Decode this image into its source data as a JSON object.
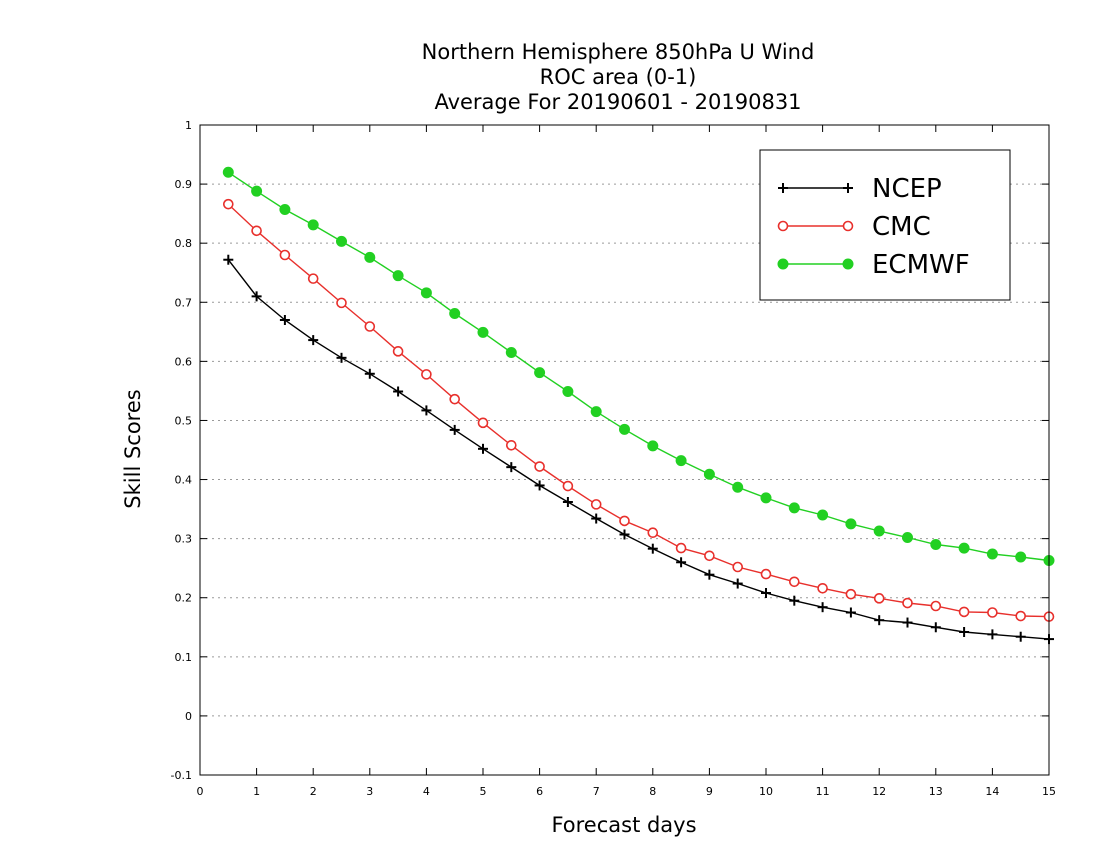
{
  "chart_data": {
    "type": "line",
    "title_lines": [
      "Northern Hemisphere 850hPa U Wind",
      "ROC area (0-1)",
      "Average For 20190601 - 20190831"
    ],
    "xlabel": "Forecast days",
    "ylabel": "Skill Scores",
    "xlim": [
      0,
      15
    ],
    "ylim": [
      -0.1,
      1
    ],
    "xticks": [
      0,
      1,
      2,
      3,
      4,
      5,
      6,
      7,
      8,
      9,
      10,
      11,
      12,
      13,
      14,
      15
    ],
    "xtick_labels": [
      "0",
      "1",
      "2",
      "3",
      "4",
      "5",
      "6",
      "7",
      "8",
      "9",
      "10",
      "11",
      "12",
      "13",
      "14",
      "15"
    ],
    "yticks": [
      -0.1,
      0,
      0.1,
      0.2,
      0.3,
      0.4,
      0.5,
      0.6,
      0.7,
      0.8,
      0.9,
      1
    ],
    "ytick_labels": [
      "-0.1",
      "0",
      "0.1",
      "0.2",
      "0.3",
      "0.4",
      "0.5",
      "0.6",
      "0.7",
      "0.8",
      "0.9",
      "1"
    ],
    "grid": "horizontal dotted",
    "legend_position": "top-right",
    "x": [
      0.5,
      1,
      1.5,
      2,
      2.5,
      3,
      3.5,
      4,
      4.5,
      5,
      5.5,
      6,
      6.5,
      7,
      7.5,
      8,
      8.5,
      9,
      9.5,
      10,
      10.5,
      11,
      11.5,
      12,
      12.5,
      13,
      13.5,
      14,
      14.5,
      15
    ],
    "series": [
      {
        "name": "NCEP",
        "color": "#000000",
        "marker": "plus",
        "values": [
          0.772,
          0.71,
          0.67,
          0.636,
          0.606,
          0.579,
          0.549,
          0.517,
          0.484,
          0.452,
          0.421,
          0.39,
          0.362,
          0.334,
          0.307,
          0.283,
          0.26,
          0.239,
          0.224,
          0.208,
          0.195,
          0.184,
          0.175,
          0.162,
          0.158,
          0.15,
          0.142,
          0.138,
          0.134,
          0.13
        ]
      },
      {
        "name": "CMC",
        "color": "#e8302c",
        "marker": "open-circle",
        "values": [
          0.866,
          0.821,
          0.78,
          0.74,
          0.699,
          0.659,
          0.617,
          0.578,
          0.536,
          0.496,
          0.458,
          0.422,
          0.389,
          0.358,
          0.33,
          0.31,
          0.284,
          0.271,
          0.252,
          0.24,
          0.227,
          0.216,
          0.206,
          0.199,
          0.191,
          0.186,
          0.176,
          0.175,
          0.169,
          0.168
        ]
      },
      {
        "name": "ECMWF",
        "color": "#22d022",
        "marker": "filled-circle",
        "values": [
          0.92,
          0.888,
          0.857,
          0.831,
          0.803,
          0.776,
          0.745,
          0.716,
          0.681,
          0.649,
          0.615,
          0.581,
          0.549,
          0.515,
          0.485,
          0.457,
          0.432,
          0.409,
          0.387,
          0.369,
          0.352,
          0.34,
          0.325,
          0.313,
          0.302,
          0.29,
          0.284,
          0.274,
          0.269,
          0.263
        ]
      }
    ]
  }
}
